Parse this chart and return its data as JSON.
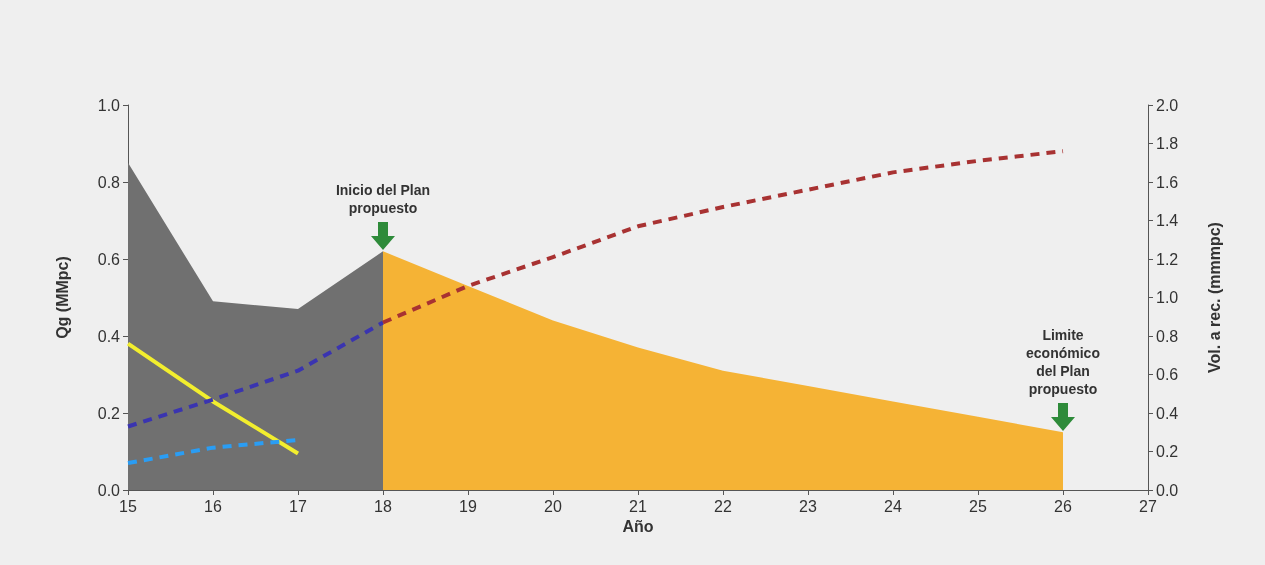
{
  "chart_data": {
    "type": "line",
    "xlabel": "Año",
    "ylabel": "Qg (MMpc)",
    "y2label": "Vol. a rec. (mmmpc)",
    "xlim": [
      15,
      27
    ],
    "xticks": [
      15,
      16,
      17,
      18,
      19,
      20,
      21,
      22,
      23,
      24,
      25,
      26,
      27
    ],
    "ylim": [
      0,
      1
    ],
    "yticks": [
      {
        "value": 0,
        "label": "0.0"
      },
      {
        "value": 0.2,
        "label": "0.2"
      },
      {
        "value": 0.4,
        "label": "0.4"
      },
      {
        "value": 0.6,
        "label": "0.6"
      },
      {
        "value": 0.8,
        "label": "0.8"
      },
      {
        "value": 1,
        "label": "1.0"
      }
    ],
    "y2lim": [
      0,
      2
    ],
    "y2ticks": [
      {
        "value": 0,
        "label": "0.0"
      },
      {
        "value": 0.2,
        "label": "0.2"
      },
      {
        "value": 0.4,
        "label": "0.4"
      },
      {
        "value": 0.6,
        "label": "0.6"
      },
      {
        "value": 0.8,
        "label": "0.8"
      },
      {
        "value": 1,
        "label": "1.0"
      },
      {
        "value": 1.2,
        "label": "1.2"
      },
      {
        "value": 1.4,
        "label": "1.4"
      },
      {
        "value": 1.6,
        "label": "1.6"
      },
      {
        "value": 1.8,
        "label": "1.8"
      },
      {
        "value": 2,
        "label": "2.0"
      }
    ],
    "grid": false,
    "marker": "none",
    "series": [
      {
        "type": "area",
        "color": "#707070",
        "x": [
          15,
          16,
          17,
          18
        ],
        "values": [
          0.85,
          0.49,
          0.47,
          0.62
        ]
      },
      {
        "type": "area",
        "color": "#f5b335",
        "x": [
          18,
          19,
          20,
          21,
          22,
          23,
          24,
          25,
          26
        ],
        "values": [
          0.62,
          0.53,
          0.44,
          0.37,
          0.31,
          0.27,
          0.23,
          0.19,
          0.15
        ]
      },
      {
        "color": "#f2ee2e",
        "line_style": "solid",
        "x": [
          15,
          16,
          17
        ],
        "values": [
          0.38,
          0.23,
          0.095
        ]
      },
      {
        "color": "#2a9df4",
        "line_style": "dashed",
        "x": [
          15,
          16,
          17
        ],
        "values": [
          0.07,
          0.11,
          0.13
        ]
      },
      {
        "color": "#3a34b0",
        "line_style": "dashed",
        "axis": "y2",
        "x": [
          15,
          16,
          17,
          18
        ],
        "values": [
          0.33,
          0.47,
          0.62,
          0.87
        ]
      },
      {
        "color": "#a83232",
        "line_style": "dashed",
        "axis": "y2",
        "x": [
          18,
          19,
          20,
          21,
          22,
          23,
          24,
          25,
          26
        ],
        "values": [
          0.87,
          1.06,
          1.21,
          1.37,
          1.47,
          1.56,
          1.65,
          1.71,
          1.76
        ]
      }
    ],
    "annotations": [
      {
        "text": "Inicio del Plan propuesto",
        "x": 18,
        "y": 0.62
      },
      {
        "text": "Limite económico del Plan propuesto",
        "x": 26,
        "y": 0.15
      }
    ]
  }
}
